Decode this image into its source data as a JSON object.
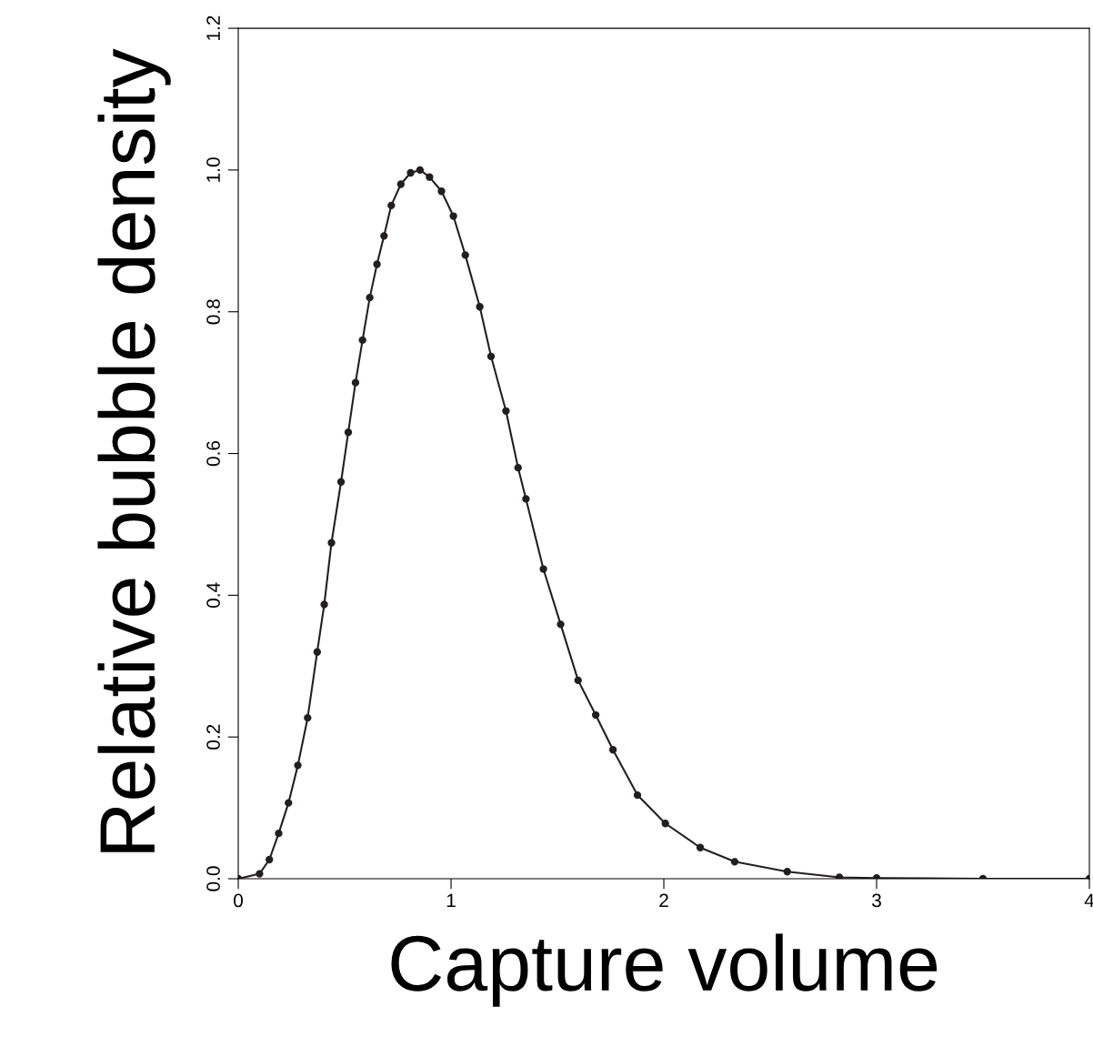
{
  "chart_data": {
    "type": "line",
    "xlabel": "Capture volume",
    "ylabel": "Relative bubble density",
    "x": [
      0,
      0.1,
      0.146,
      0.19,
      0.236,
      0.28,
      0.326,
      0.371,
      0.404,
      0.438,
      0.483,
      0.517,
      0.551,
      0.584,
      0.618,
      0.652,
      0.685,
      0.719,
      0.764,
      0.81,
      0.854,
      0.899,
      0.955,
      1.011,
      1.067,
      1.135,
      1.188,
      1.258,
      1.315,
      1.352,
      1.434,
      1.515,
      1.597,
      1.68,
      1.761,
      1.876,
      2.007,
      2.171,
      2.333,
      2.58,
      2.825,
      3.0,
      3.5,
      4.0
    ],
    "series": [
      {
        "color": "#231f20",
        "values": [
          0,
          0.007,
          0.027,
          0.064,
          0.107,
          0.16,
          0.227,
          0.32,
          0.387,
          0.474,
          0.56,
          0.63,
          0.7,
          0.76,
          0.82,
          0.867,
          0.907,
          0.95,
          0.98,
          0.996,
          1.0,
          0.99,
          0.97,
          0.935,
          0.88,
          0.807,
          0.737,
          0.66,
          0.58,
          0.536,
          0.437,
          0.359,
          0.28,
          0.231,
          0.182,
          0.118,
          0.078,
          0.044,
          0.024,
          0.01,
          0.002,
          0.001,
          0,
          0
        ]
      }
    ],
    "xlim": [
      0,
      4
    ],
    "xticks": [
      0,
      1,
      2,
      3,
      4
    ],
    "ylim": [
      0,
      1.2
    ],
    "yticks": [
      {
        "value": 0,
        "label": "0.0"
      },
      {
        "value": 0.2,
        "label": "0.2"
      },
      {
        "value": 0.4,
        "label": "0.4"
      },
      {
        "value": 0.6,
        "label": "0.6"
      },
      {
        "value": 0.8,
        "label": "0.8"
      },
      {
        "value": 1.0,
        "label": "1.0"
      },
      {
        "value": 1.2,
        "label": "1.2"
      }
    ],
    "grid": false,
    "marker": "circle",
    "line_style": "solid"
  }
}
